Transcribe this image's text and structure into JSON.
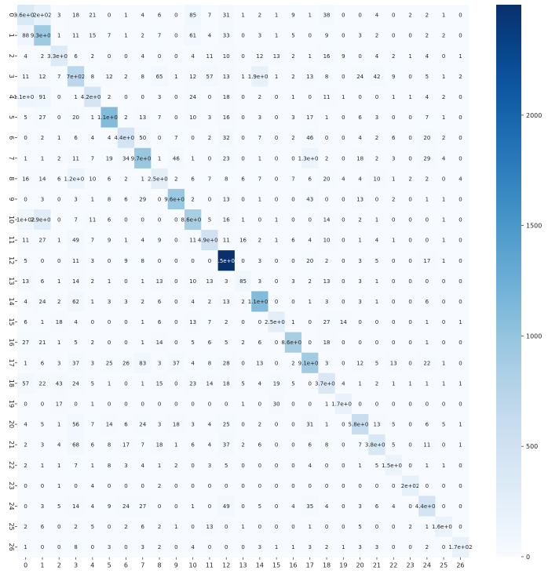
{
  "chart_data": {
    "type": "heatmap",
    "title": "",
    "xlabel": "",
    "ylabel": "",
    "x_tick_labels": [
      "0",
      "1",
      "2",
      "3",
      "4",
      "5",
      "6",
      "7",
      "8",
      "9",
      "10",
      "11",
      "12",
      "13",
      "14",
      "15",
      "16",
      "17",
      "18",
      "19",
      "20",
      "21",
      "22",
      "23",
      "24",
      "25",
      "26"
    ],
    "y_tick_labels": [
      "0",
      "1",
      "2",
      "3",
      "4",
      "5",
      "6",
      "7",
      "8",
      "9",
      "10",
      "11",
      "12",
      "13",
      "14",
      "15",
      "16",
      "17",
      "18",
      "19",
      "20",
      "21",
      "22",
      "23",
      "24",
      "25",
      "26"
    ],
    "colorscale": "Blues",
    "colorbar": {
      "min": 0,
      "max": 2500,
      "ticks": [
        0,
        500,
        1000,
        1500,
        2000
      ],
      "tick_labels": [
        "0",
        "500",
        "1000",
        "1500",
        "2000"
      ]
    },
    "cell_labels": [
      [
        "3.6e+02",
        "2e+02",
        "3",
        "18",
        "21",
        "0",
        "1",
        "4",
        "6",
        "0",
        "85",
        "7",
        "31",
        "1",
        "2",
        "1",
        "9",
        "1",
        "38",
        "0",
        "0",
        "4",
        "0",
        "2",
        "2",
        "1",
        "0"
      ],
      [
        "88",
        "9.3e+02",
        "1",
        "11",
        "15",
        "7",
        "1",
        "2",
        "7",
        "0",
        "61",
        "4",
        "33",
        "0",
        "3",
        "1",
        "5",
        "0",
        "9",
        "0",
        "3",
        "2",
        "0",
        "0",
        "2",
        "2",
        "0"
      ],
      [
        "4",
        "2",
        "3.3e+02",
        "6",
        "2",
        "0",
        "0",
        "4",
        "0",
        "0",
        "4",
        "11",
        "10",
        "0",
        "12",
        "13",
        "2",
        "1",
        "16",
        "9",
        "0",
        "4",
        "2",
        "1",
        "4",
        "0",
        "1"
      ],
      [
        "11",
        "12",
        "7",
        "7e+02",
        "8",
        "12",
        "2",
        "8",
        "65",
        "1",
        "12",
        "57",
        "13",
        "1",
        "1.9e+02",
        "1",
        "2",
        "13",
        "8",
        "0",
        "24",
        "42",
        "9",
        "0",
        "5",
        "1",
        "2"
      ],
      [
        "1.1e+02",
        "91",
        "0",
        "1",
        "4.2e+02",
        "2",
        "0",
        "0",
        "3",
        "0",
        "24",
        "0",
        "18",
        "0",
        "2",
        "0",
        "1",
        "0",
        "11",
        "1",
        "0",
        "0",
        "1",
        "1",
        "4",
        "2",
        "0"
      ],
      [
        "5",
        "27",
        "0",
        "20",
        "1",
        "1.1e+03",
        "2",
        "13",
        "7",
        "0",
        "10",
        "3",
        "16",
        "0",
        "3",
        "0",
        "3",
        "17",
        "1",
        "0",
        "6",
        "3",
        "0",
        "0",
        "7",
        "1",
        "0"
      ],
      [
        "0",
        "2",
        "1",
        "6",
        "4",
        "4",
        "4.4e+02",
        "50",
        "0",
        "7",
        "0",
        "2",
        "32",
        "0",
        "7",
        "0",
        "2",
        "46",
        "0",
        "0",
        "4",
        "2",
        "6",
        "0",
        "20",
        "2",
        "0"
      ],
      [
        "1",
        "1",
        "2",
        "11",
        "7",
        "19",
        "34",
        "9.7e+02",
        "1",
        "46",
        "1",
        "0",
        "23",
        "0",
        "1",
        "0",
        "0",
        "1.3e+02",
        "2",
        "0",
        "18",
        "2",
        "3",
        "0",
        "29",
        "4",
        "0"
      ],
      [
        "16",
        "14",
        "6",
        "1.2e+02",
        "10",
        "6",
        "2",
        "1",
        "2.5e+02",
        "2",
        "6",
        "7",
        "8",
        "6",
        "7",
        "0",
        "7",
        "6",
        "20",
        "4",
        "4",
        "10",
        "1",
        "2",
        "2",
        "0",
        "4"
      ],
      [
        "0",
        "3",
        "0",
        "3",
        "1",
        "8",
        "6",
        "29",
        "0",
        "9.6e+02",
        "2",
        "0",
        "13",
        "0",
        "1",
        "0",
        "0",
        "43",
        "0",
        "0",
        "13",
        "0",
        "2",
        "0",
        "1",
        "1",
        "0"
      ],
      [
        "1e+02",
        "2.9e+02",
        "0",
        "7",
        "11",
        "6",
        "0",
        "0",
        "0",
        "0",
        "8.6e+02",
        "5",
        "16",
        "1",
        "0",
        "1",
        "0",
        "0",
        "14",
        "0",
        "2",
        "1",
        "0",
        "0",
        "0",
        "1",
        "0"
      ],
      [
        "11",
        "27",
        "1",
        "49",
        "7",
        "9",
        "1",
        "4",
        "9",
        "0",
        "11",
        "4.9e+02",
        "11",
        "16",
        "2",
        "1",
        "6",
        "4",
        "10",
        "0",
        "1",
        "4",
        "1",
        "0",
        "0",
        "1",
        "0"
      ],
      [
        "5",
        "0",
        "0",
        "11",
        "3",
        "0",
        "9",
        "8",
        "0",
        "0",
        "0",
        "0",
        "2.5e+03",
        "0",
        "3",
        "0",
        "0",
        "20",
        "2",
        "0",
        "3",
        "5",
        "0",
        "0",
        "17",
        "1",
        "0"
      ],
      [
        "13",
        "6",
        "1",
        "14",
        "2",
        "1",
        "0",
        "1",
        "13",
        "0",
        "10",
        "13",
        "3",
        "85",
        "3",
        "0",
        "3",
        "2",
        "13",
        "0",
        "3",
        "1",
        "0",
        "0",
        "0",
        "0",
        "0"
      ],
      [
        "4",
        "24",
        "2",
        "62",
        "1",
        "3",
        "3",
        "2",
        "6",
        "0",
        "4",
        "2",
        "13",
        "2",
        "1.1e+03",
        "0",
        "0",
        "1",
        "3",
        "0",
        "3",
        "1",
        "0",
        "0",
        "6",
        "0",
        "0"
      ],
      [
        "6",
        "1",
        "18",
        "4",
        "0",
        "0",
        "0",
        "1",
        "6",
        "0",
        "13",
        "7",
        "2",
        "0",
        "0",
        "2.5e+02",
        "1",
        "0",
        "27",
        "14",
        "0",
        "0",
        "0",
        "0",
        "1",
        "0",
        "1"
      ],
      [
        "27",
        "21",
        "1",
        "5",
        "2",
        "0",
        "0",
        "1",
        "14",
        "0",
        "5",
        "6",
        "5",
        "2",
        "6",
        "0",
        "8.6e+02",
        "0",
        "18",
        "0",
        "0",
        "0",
        "0",
        "0",
        "1",
        "0",
        "0"
      ],
      [
        "1",
        "6",
        "3",
        "37",
        "3",
        "25",
        "26",
        "83",
        "3",
        "37",
        "4",
        "8",
        "28",
        "0",
        "13",
        "0",
        "2",
        "9.1e+02",
        "3",
        "0",
        "12",
        "5",
        "13",
        "0",
        "22",
        "1",
        "0"
      ],
      [
        "57",
        "22",
        "43",
        "24",
        "5",
        "1",
        "0",
        "1",
        "15",
        "0",
        "23",
        "14",
        "18",
        "5",
        "4",
        "19",
        "5",
        "0",
        "3.7e+02",
        "4",
        "1",
        "2",
        "1",
        "1",
        "1",
        "1",
        "1"
      ],
      [
        "0",
        "0",
        "17",
        "0",
        "1",
        "0",
        "0",
        "0",
        "0",
        "0",
        "0",
        "0",
        "0",
        "1",
        "0",
        "30",
        "0",
        "0",
        "1",
        "1.7e+02",
        "0",
        "0",
        "0",
        "0",
        "0",
        "0",
        "0"
      ],
      [
        "4",
        "5",
        "1",
        "56",
        "7",
        "14",
        "6",
        "24",
        "3",
        "18",
        "3",
        "4",
        "25",
        "0",
        "2",
        "0",
        "0",
        "31",
        "1",
        "0",
        "5.8e+02",
        "13",
        "5",
        "0",
        "6",
        "5",
        "1"
      ],
      [
        "2",
        "3",
        "4",
        "68",
        "6",
        "8",
        "17",
        "7",
        "18",
        "1",
        "6",
        "4",
        "37",
        "2",
        "6",
        "0",
        "0",
        "6",
        "8",
        "0",
        "7",
        "3.8e+02",
        "5",
        "0",
        "11",
        "0",
        "1"
      ],
      [
        "2",
        "1",
        "1",
        "7",
        "1",
        "8",
        "3",
        "4",
        "1",
        "2",
        "0",
        "3",
        "5",
        "0",
        "0",
        "0",
        "0",
        "4",
        "0",
        "0",
        "1",
        "5",
        "1.5e+02",
        "0",
        "1",
        "1",
        "0"
      ],
      [
        "0",
        "0",
        "1",
        "0",
        "4",
        "0",
        "0",
        "0",
        "2",
        "0",
        "0",
        "0",
        "0",
        "0",
        "0",
        "0",
        "0",
        "0",
        "0",
        "0",
        "0",
        "0",
        "0",
        "2e+02",
        "0",
        "0",
        "0"
      ],
      [
        "0",
        "3",
        "5",
        "14",
        "4",
        "9",
        "24",
        "27",
        "0",
        "0",
        "1",
        "0",
        "49",
        "0",
        "5",
        "0",
        "4",
        "35",
        "4",
        "0",
        "3",
        "6",
        "4",
        "0",
        "4.4e+02",
        "0",
        "0"
      ],
      [
        "2",
        "6",
        "0",
        "2",
        "5",
        "0",
        "2",
        "6",
        "2",
        "1",
        "0",
        "13",
        "0",
        "1",
        "0",
        "0",
        "0",
        "1",
        "0",
        "0",
        "5",
        "0",
        "0",
        "2",
        "1",
        "1.6e+02",
        "0"
      ],
      [
        "1",
        "0",
        "0",
        "8",
        "0",
        "3",
        "0",
        "3",
        "2",
        "0",
        "4",
        "0",
        "0",
        "0",
        "3",
        "1",
        "1",
        "3",
        "2",
        "1",
        "3",
        "3",
        "0",
        "0",
        "2",
        "0",
        "1.7e+02"
      ]
    ]
  }
}
